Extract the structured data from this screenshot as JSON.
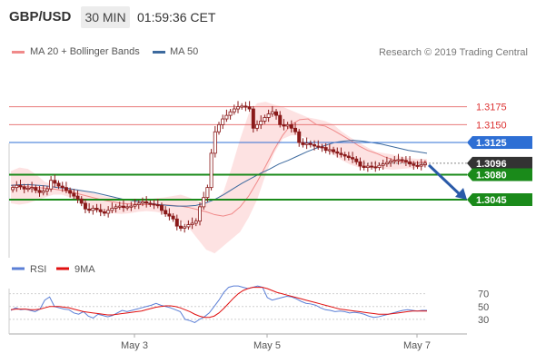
{
  "header": {
    "pair": "GBP/USD",
    "timeframe": "30 MIN",
    "time": "01:59:36 CET"
  },
  "legend": {
    "bollinger": {
      "label": "MA 20 + Bollinger Bands",
      "color": "#f08a8a"
    },
    "ma50": {
      "label": "MA 50",
      "color": "#3d6a9e"
    }
  },
  "credit": "Research © 2019 Trading Central",
  "chart_data": [
    {
      "type": "candlestick",
      "price_range": [
        1.2965,
        1.32
      ],
      "x_ticks": [
        "May 3",
        "May 5",
        "May 7"
      ],
      "levels": [
        {
          "value": 1.3175,
          "label": "1.3175",
          "style": "resistance",
          "color": "#e87a7a"
        },
        {
          "value": 1.315,
          "label": "1.3150",
          "style": "resistance",
          "color": "#e87a7a"
        },
        {
          "value": 1.3125,
          "label": "1.3125",
          "style": "pivot",
          "color": "#2e6fd4"
        },
        {
          "value": 1.3096,
          "label": "1.3096",
          "style": "last",
          "color": "#333333"
        },
        {
          "value": 1.308,
          "label": "1.3080",
          "style": "support",
          "color": "#1a8a1a"
        },
        {
          "value": 1.3045,
          "label": "1.3045",
          "style": "support",
          "color": "#1a8a1a"
        }
      ],
      "close": [
        1.3062,
        1.3065,
        1.3063,
        1.306,
        1.3061,
        1.3062,
        1.3058,
        1.3055,
        1.3057,
        1.306,
        1.3072,
        1.3068,
        1.3064,
        1.3062,
        1.3058,
        1.3054,
        1.305,
        1.3046,
        1.304,
        1.3032,
        1.303,
        1.3033,
        1.3031,
        1.3028,
        1.3026,
        1.303,
        1.3033,
        1.3035,
        1.3036,
        1.3034,
        1.3035,
        1.3036,
        1.3038,
        1.304,
        1.3042,
        1.304,
        1.3039,
        1.3038,
        1.3037,
        1.303,
        1.3025,
        1.3022,
        1.3018,
        1.3008,
        1.3005,
        1.3007,
        1.301,
        1.3012,
        1.3015,
        1.3035,
        1.3048,
        1.3062,
        1.311,
        1.314,
        1.315,
        1.3158,
        1.3163,
        1.3168,
        1.3172,
        1.3175,
        1.3176,
        1.3175,
        1.3172,
        1.3145,
        1.315,
        1.3155,
        1.316,
        1.3165,
        1.3168,
        1.3163,
        1.315,
        1.3148,
        1.315,
        1.3145,
        1.314,
        1.3125,
        1.3122,
        1.3124,
        1.3122,
        1.312,
        1.3119,
        1.3118,
        1.3114,
        1.3115,
        1.3112,
        1.311,
        1.3108,
        1.3106,
        1.3104,
        1.3102,
        1.3098,
        1.3092,
        1.309,
        1.3092,
        1.3091,
        1.309,
        1.3093,
        1.3095,
        1.3097,
        1.3099,
        1.31,
        1.3101,
        1.31,
        1.3098,
        1.3095,
        1.3093,
        1.3092,
        1.3094,
        1.3096
      ],
      "bollinger_mid": [
        1.3061,
        1.3063,
        1.3063,
        1.3062,
        1.3061,
        1.306,
        1.3058,
        1.3056,
        1.3053,
        1.305,
        1.3047,
        1.3044,
        1.3042,
        1.304,
        1.3039,
        1.3038,
        1.3038,
        1.3038,
        1.3038,
        1.3037,
        1.3036,
        1.3034,
        1.3031,
        1.3028,
        1.3024,
        1.3022,
        1.3025,
        1.3035,
        1.305,
        1.307,
        1.3092,
        1.3115,
        1.3135,
        1.315,
        1.3157,
        1.3158,
        1.315,
        1.3148,
        1.3142,
        1.3135,
        1.3128,
        1.312,
        1.3114,
        1.311,
        1.3105,
        1.3101,
        1.3098,
        1.3097,
        1.3097,
        1.3098
      ],
      "bollinger_upper": [
        1.3085,
        1.309,
        1.3088,
        1.308,
        1.307,
        1.3066,
        1.3062,
        1.306,
        1.3058,
        1.3056,
        1.3053,
        1.305,
        1.3048,
        1.3046,
        1.3045,
        1.3044,
        1.3045,
        1.3047,
        1.3048,
        1.305,
        1.3052,
        1.3048,
        1.3043,
        1.304,
        1.3044,
        1.3055,
        1.309,
        1.313,
        1.3165,
        1.318,
        1.3182,
        1.3178,
        1.3175,
        1.317,
        1.3165,
        1.316,
        1.3158,
        1.3155,
        1.315,
        1.314,
        1.3132,
        1.3125,
        1.3118,
        1.3112,
        1.311,
        1.3108,
        1.3105,
        1.3103,
        1.3102,
        1.3102
      ],
      "bollinger_lower": [
        1.304,
        1.3038,
        1.304,
        1.3044,
        1.3048,
        1.3052,
        1.3052,
        1.3048,
        1.3042,
        1.3036,
        1.303,
        1.3028,
        1.3026,
        1.3025,
        1.3026,
        1.3028,
        1.3029,
        1.3028,
        1.3026,
        1.3022,
        1.3015,
        1.3005,
        1.299,
        1.2975,
        1.297,
        1.298,
        1.299,
        1.3,
        1.302,
        1.3045,
        1.308,
        1.311,
        1.313,
        1.3135,
        1.3135,
        1.313,
        1.3125,
        1.3115,
        1.3108,
        1.31,
        1.3094,
        1.309,
        1.309,
        1.309,
        1.3088,
        1.3087,
        1.3088,
        1.3089,
        1.309,
        1.3092
      ],
      "ma50": [
        1.3065,
        1.3066,
        1.3066,
        1.3065,
        1.3064,
        1.3062,
        1.3061,
        1.3059,
        1.3057,
        1.3055,
        1.3052,
        1.3049,
        1.3046,
        1.3044,
        1.3042,
        1.304,
        1.3038,
        1.3037,
        1.3036,
        1.3036,
        1.3037,
        1.304,
        1.3045,
        1.3052,
        1.306,
        1.3068,
        1.3075,
        1.3082,
        1.3088,
        1.3095,
        1.31,
        1.3106,
        1.3112,
        1.3117,
        1.3121,
        1.3125,
        1.3127,
        1.3128,
        1.3127,
        1.3125,
        1.3123,
        1.312,
        1.3117,
        1.3114,
        1.3112,
        1.311
      ],
      "forecast_arrow": {
        "from": 1.3096,
        "to": 1.3045
      }
    },
    {
      "type": "line",
      "y_range": [
        10,
        95
      ],
      "y_ticks": [
        70,
        50,
        30
      ],
      "series": [
        {
          "name": "RSI",
          "color": "#5b7fd6",
          "values": [
            44,
            48,
            45,
            46,
            44,
            42,
            46,
            60,
            65,
            50,
            48,
            46,
            45,
            40,
            38,
            42,
            35,
            32,
            38,
            36,
            34,
            36,
            40,
            44,
            42,
            44,
            46,
            48,
            50,
            52,
            55,
            52,
            50,
            48,
            45,
            42,
            30,
            28,
            25,
            30,
            34,
            40,
            50,
            60,
            72,
            80,
            82,
            82,
            80,
            78,
            80,
            82,
            80,
            64,
            60,
            62,
            64,
            66,
            65,
            62,
            58,
            55,
            54,
            52,
            48,
            45,
            44,
            42,
            43,
            42,
            40,
            41,
            40,
            38,
            35,
            33,
            34,
            36,
            38,
            40,
            42,
            44,
            45,
            44,
            43,
            44,
            44
          ]
        },
        {
          "name": "9MA",
          "color": "#e01010",
          "values": [
            45,
            46,
            46,
            46,
            45,
            45,
            46,
            48,
            50,
            50,
            50,
            49,
            48,
            46,
            44,
            42,
            41,
            40,
            39,
            38,
            37,
            37,
            38,
            39,
            40,
            41,
            42,
            43,
            45,
            47,
            49,
            50,
            51,
            51,
            50,
            48,
            45,
            42,
            38,
            35,
            33,
            33,
            35,
            40,
            47,
            55,
            63,
            70,
            75,
            78,
            80,
            80,
            80,
            78,
            75,
            72,
            70,
            68,
            66,
            64,
            62,
            60,
            58,
            56,
            54,
            52,
            50,
            48,
            46,
            45,
            44,
            43,
            42,
            41,
            40,
            39,
            38,
            38,
            38,
            39,
            40,
            41,
            42,
            43,
            43,
            43,
            43
          ]
        }
      ]
    }
  ]
}
